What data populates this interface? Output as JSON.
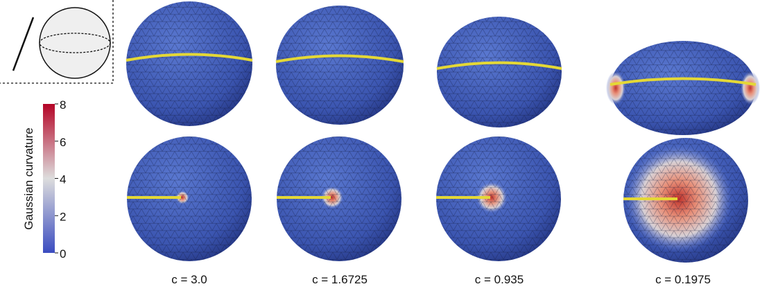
{
  "colorbar": {
    "label": "Gaussian curvature",
    "ticks": [
      0,
      2,
      4,
      6,
      8
    ]
  },
  "panels": [
    {
      "caption": "c = 3.0"
    },
    {
      "caption": "c = 1.6725"
    },
    {
      "caption": "c = 0.935"
    },
    {
      "caption": "c = 0.1975"
    }
  ]
}
